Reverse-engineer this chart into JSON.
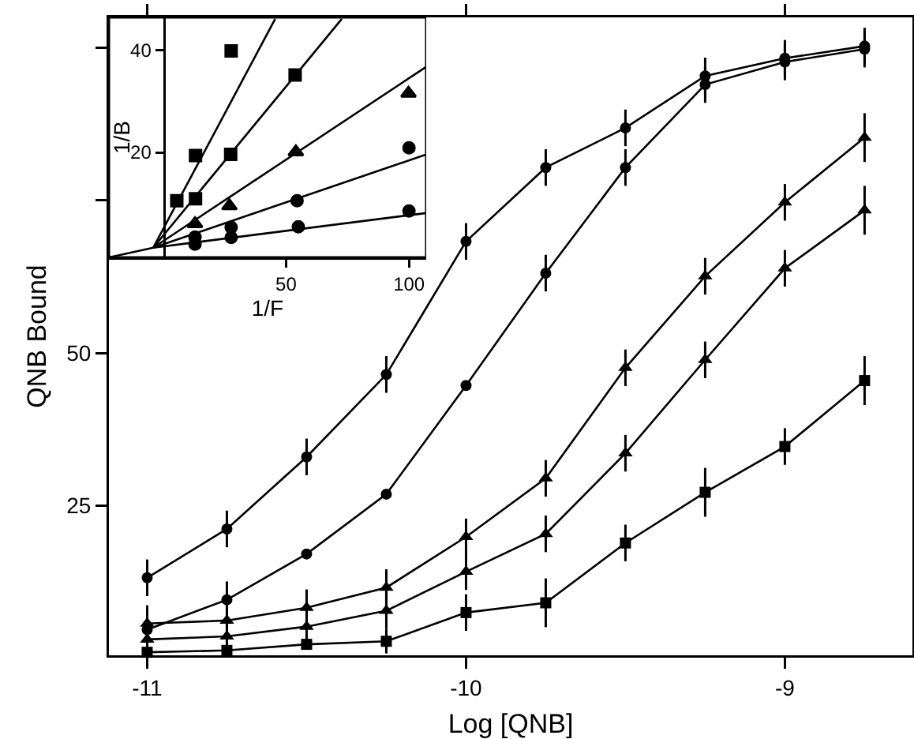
{
  "chart_data": [
    {
      "type": "line",
      "xlabel": "Log [QNB]",
      "ylabel": "QNB Bound",
      "xlim": [
        -11.12,
        -8.6
      ],
      "ylim": [
        0.5,
        105
      ],
      "xticks": [
        -11,
        -10,
        -9
      ],
      "yticks": [
        25,
        50,
        {
          "value": 75,
          "label": null
        },
        {
          "value": 100,
          "label": null
        }
      ],
      "x": [
        -11,
        -10.75,
        -10.5,
        -10.25,
        -10,
        -9.75,
        -9.5,
        -9.25,
        -9,
        -8.75
      ],
      "series": [
        {
          "color": "#000000",
          "marker": "circle",
          "line_style": "solid",
          "values": [
            13.2,
            21.2,
            33,
            46.5,
            68.3,
            80.4,
            86.9,
            95.4,
            98.3,
            100.3
          ],
          "errors": [
            3,
            3,
            3,
            3,
            3,
            3,
            3,
            3,
            3,
            3
          ]
        },
        {
          "color": "#000000",
          "marker": "circle",
          "line_style": "solid",
          "values": [
            4.7,
            9.6,
            17.1,
            26.9,
            44.7,
            63.1,
            80.4,
            94,
            97.7,
            99.8
          ],
          "errors": [
            3,
            3,
            null,
            null,
            null,
            3,
            3,
            3,
            3,
            3
          ]
        },
        {
          "color": "#000000",
          "marker": "triangle",
          "line_style": "solid",
          "values": [
            5.7,
            6.2,
            8.3,
            11.6,
            19.9,
            29.5,
            47.6,
            62.6,
            74.7,
            85.3
          ],
          "errors": [
            3,
            3,
            3,
            3,
            3,
            3,
            3,
            3,
            3,
            4
          ]
        },
        {
          "color": "#000000",
          "marker": "triangle",
          "line_style": "solid",
          "values": [
            3.1,
            3.6,
            5.2,
            7.8,
            14.2,
            20.4,
            33.6,
            48.9,
            63.9,
            73.4
          ],
          "errors": [
            3,
            3,
            3,
            3,
            3,
            3,
            3,
            3,
            3,
            4
          ]
        },
        {
          "color": "#000000",
          "marker": "square",
          "line_style": "solid",
          "values": [
            1,
            1.3,
            2.3,
            2.8,
            7.5,
            9.1,
            18.9,
            27.2,
            34.7,
            45.5
          ],
          "errors": [
            null,
            null,
            null,
            2,
            3,
            4,
            3,
            4,
            3,
            4
          ]
        }
      ]
    },
    {
      "type": "scatter",
      "xlabel": "1/F",
      "ylabel": "1/B",
      "xlim": [
        -22,
        107
      ],
      "ylim": [
        -0.6,
        46.5
      ],
      "xticks": [
        50,
        100
      ],
      "yticks": [
        20,
        40
      ],
      "series": [
        {
          "color": "#000000",
          "marker": "square",
          "x": [
            5.6,
            13.2,
            27.7
          ],
          "values": [
            10.5,
            19.4,
            39.9
          ]
        },
        {
          "color": "#000000",
          "marker": "square",
          "x": [
            13.2,
            27.5,
            53.7
          ],
          "values": [
            10.9,
            19.6,
            35.2
          ]
        },
        {
          "color": "#000000",
          "marker": "triangle",
          "x": [
            13,
            27,
            54,
            99.8
          ],
          "values": [
            6,
            9.5,
            20.1,
            31.6
          ]
        },
        {
          "color": "#000000",
          "marker": "circle",
          "x": [
            13,
            27.7,
            54.5,
            100
          ],
          "values": [
            3.4,
            5.3,
            10.5,
            20.9
          ]
        },
        {
          "color": "#000000",
          "marker": "circle",
          "x": [
            13,
            27.7,
            55,
            100
          ],
          "values": [
            2,
            3.3,
            5.4,
            8.5
          ]
        },
        {
          "type": "line",
          "color": "#000000",
          "marker": "none",
          "line_style": "solid",
          "x": [
            -4,
            45.6
          ],
          "values": [
            1.3,
            46.2
          ]
        },
        {
          "type": "line",
          "color": "#000000",
          "marker": "none",
          "line_style": "solid",
          "x": [
            -4,
            72.7
          ],
          "values": [
            1.3,
            46.2
          ]
        },
        {
          "type": "line",
          "color": "#000000",
          "marker": "none",
          "line_style": "solid",
          "x": [
            -4,
            107
          ],
          "values": [
            1.3,
            36.8
          ]
        },
        {
          "type": "line",
          "color": "#000000",
          "marker": "none",
          "line_style": "solid",
          "x": [
            -4,
            107
          ],
          "values": [
            1.3,
            19.6
          ]
        },
        {
          "type": "line",
          "color": "#000000",
          "marker": "none",
          "line_style": "solid",
          "x": [
            -22,
            -4,
            107
          ],
          "values": [
            -0.6,
            1.3,
            8.1
          ]
        }
      ]
    }
  ]
}
